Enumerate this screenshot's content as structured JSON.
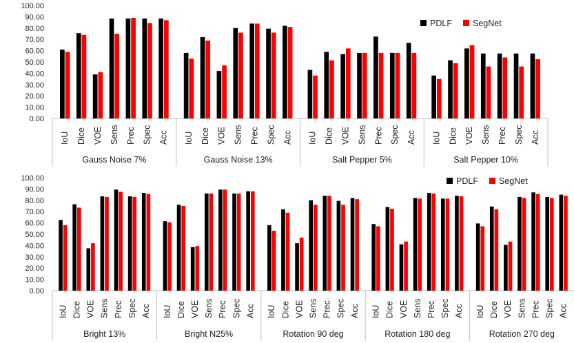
{
  "chart_data": [
    {
      "type": "bar",
      "ylim": [
        0,
        100
      ],
      "y_ticks": [
        "0.00",
        "10.00",
        "20.00",
        "30.00",
        "40.00",
        "50.00",
        "60.00",
        "70.00",
        "80.00",
        "90.00",
        "100.00"
      ],
      "legend": {
        "placement": "top-right",
        "entries": [
          "PDLF",
          "SegNet"
        ]
      },
      "colors": {
        "PDLF": "#000000",
        "SegNet": "#ff0000"
      },
      "metrics": [
        "IoU",
        "Dice",
        "VOE",
        "Sens",
        "Prec",
        "Spec",
        "Acc"
      ],
      "groups": [
        {
          "name": "Gauss Noise 7%",
          "PDLF": [
            61,
            75.5,
            39,
            88.5,
            88.5,
            88.5,
            88.5
          ],
          "SegNet": [
            59,
            74,
            41,
            75,
            89,
            84.5,
            87
          ]
        },
        {
          "name": "Gauss Noise 13%",
          "PDLF": [
            58,
            72,
            42,
            80,
            84,
            79.5,
            82
          ],
          "SegNet": [
            53,
            69,
            47,
            76,
            84,
            76,
            81
          ]
        },
        {
          "name": "Salt Pepper 5%",
          "PDLF": [
            43,
            59,
            57,
            58,
            72.5,
            58,
            67
          ],
          "SegNet": [
            38,
            51.5,
            62,
            58,
            58,
            58,
            58
          ]
        },
        {
          "name": "Salt Pepper 10%",
          "PDLF": [
            38,
            51.5,
            62,
            57.5,
            57.5,
            57.5,
            57.5
          ],
          "SegNet": [
            35,
            49,
            65,
            46,
            54,
            46,
            52.5
          ]
        }
      ]
    },
    {
      "type": "bar",
      "ylim": [
        0,
        100
      ],
      "y_ticks": [
        "0.00",
        "10.00",
        "20.00",
        "30.00",
        "40.00",
        "50.00",
        "60.00",
        "70.00",
        "80.00",
        "90.00",
        "100.00"
      ],
      "legend": {
        "placement": "top-right",
        "entries": [
          "PDLF",
          "SegNet"
        ]
      },
      "colors": {
        "PDLF": "#000000",
        "SegNet": "#ff0000"
      },
      "metrics": [
        "IoU",
        "Dice",
        "VOE",
        "Sens",
        "Prec",
        "Spec",
        "Acc"
      ],
      "groups": [
        {
          "name": "Bright 13%",
          "PDLF": [
            62.5,
            76.5,
            37.5,
            83.5,
            89.5,
            83.5,
            86.5
          ],
          "SegNet": [
            58,
            73.5,
            42,
            83,
            87.5,
            83,
            85.5
          ]
        },
        {
          "name": "Bright N25%",
          "PDLF": [
            61.5,
            76,
            38.5,
            86,
            89.5,
            86,
            88
          ],
          "SegNet": [
            60.5,
            75,
            39.5,
            86,
            89.5,
            86,
            88
          ]
        },
        {
          "name": "Rotation 90 deg",
          "PDLF": [
            58,
            72,
            42,
            80,
            84,
            79.5,
            82
          ],
          "SegNet": [
            53,
            69,
            47,
            76,
            84,
            76,
            81
          ]
        },
        {
          "name": "Rotation 180 deg",
          "PDLF": [
            59,
            74,
            41,
            82,
            86.5,
            81.5,
            84
          ],
          "SegNet": [
            57,
            72.5,
            43.5,
            81.5,
            86,
            81.5,
            83.5
          ]
        },
        {
          "name": "Rotation 270 deg",
          "PDLF": [
            59.5,
            74.5,
            40.5,
            83,
            87,
            83,
            85
          ],
          "SegNet": [
            57,
            72,
            43.5,
            82,
            85.5,
            82,
            84
          ]
        }
      ]
    }
  ]
}
